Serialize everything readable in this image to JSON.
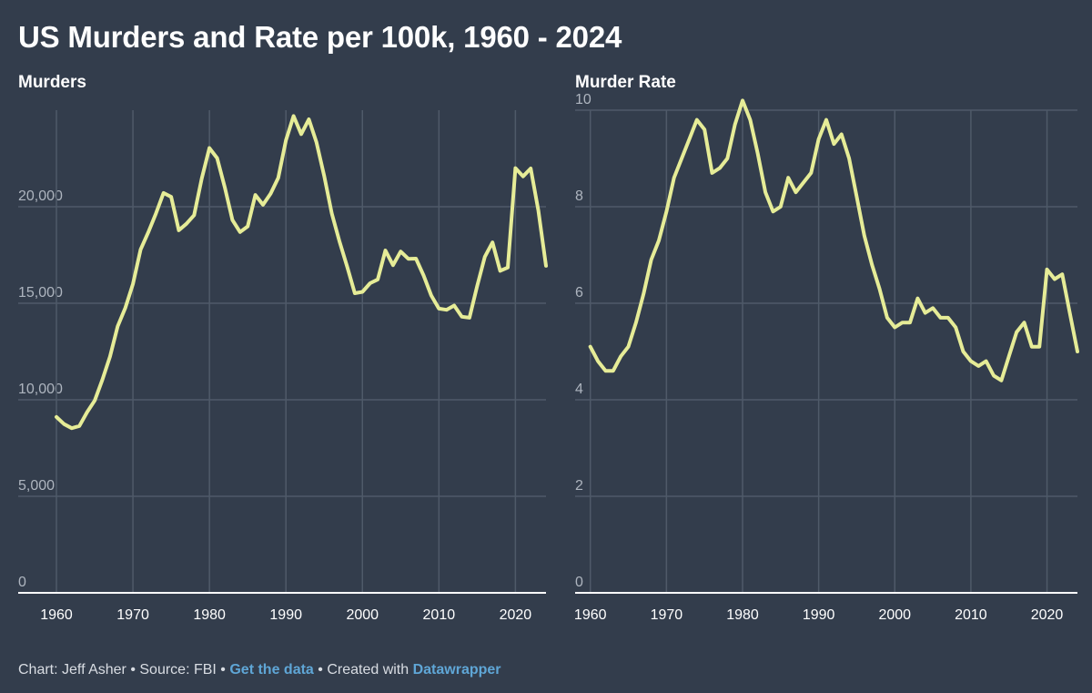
{
  "title": "US Murders and Rate per 100k, 1960 - 2024",
  "footer": {
    "chart_by": "Chart: Jeff Asher",
    "sep1": " • ",
    "source": "Source: FBI",
    "sep2": " • ",
    "get_data": "Get the data",
    "sep3": " • ",
    "created_with": "Created with ",
    "tool": "Datawrapper"
  },
  "colors": {
    "background": "#333d4c",
    "line": "#e6ec97",
    "grid": "#4f5a69",
    "axis": "#ffffff",
    "link": "#5fa6d6"
  },
  "chart_data": [
    {
      "type": "line",
      "title": "Murders",
      "xlabel": "",
      "ylabel": "",
      "xlim": [
        1955,
        2024
      ],
      "ylim": [
        0,
        25000
      ],
      "xticks": [
        1960,
        1970,
        1980,
        1990,
        2000,
        2010,
        2020
      ],
      "xtick_labels": [
        "1960",
        "1970",
        "1980",
        "1990",
        "2000",
        "2010",
        "2020"
      ],
      "yticks": [
        0,
        5000,
        10000,
        15000,
        20000
      ],
      "ytick_labels": [
        "0",
        "5,000",
        "10,000",
        "15,000",
        "20,000"
      ],
      "grid": true,
      "x": [
        1960,
        1961,
        1962,
        1963,
        1964,
        1965,
        1966,
        1967,
        1968,
        1969,
        1970,
        1971,
        1972,
        1973,
        1974,
        1975,
        1976,
        1977,
        1978,
        1979,
        1980,
        1981,
        1982,
        1983,
        1984,
        1985,
        1986,
        1987,
        1988,
        1989,
        1990,
        1991,
        1992,
        1993,
        1994,
        1995,
        1996,
        1997,
        1998,
        1999,
        2000,
        2001,
        2002,
        2003,
        2004,
        2005,
        2006,
        2007,
        2008,
        2009,
        2010,
        2011,
        2012,
        2013,
        2014,
        2015,
        2016,
        2017,
        2018,
        2019,
        2020,
        2021,
        2022,
        2023,
        2024
      ],
      "series": [
        {
          "values": [
            9110,
            8740,
            8530,
            8640,
            9360,
            9960,
            11040,
            12240,
            13800,
            14760,
            16000,
            17780,
            18670,
            19640,
            20710,
            20510,
            18780,
            19120,
            19560,
            21460,
            23040,
            22520,
            21010,
            19310,
            18690,
            18980,
            20610,
            20100,
            20680,
            21500,
            23440,
            24700,
            23760,
            24530,
            23330,
            21610,
            19650,
            18210,
            16910,
            15520,
            15590,
            16040,
            16230,
            17730,
            16970,
            17680,
            17300,
            17310,
            16440,
            15400,
            14720,
            14660,
            14880,
            14300,
            14250,
            15880,
            17410,
            18150,
            16680,
            16850,
            22000,
            21570,
            21980,
            19800,
            16940
          ]
        }
      ]
    },
    {
      "type": "line",
      "title": "Murder Rate",
      "xlabel": "",
      "ylabel": "",
      "xlim": [
        1958,
        2024
      ],
      "ylim": [
        0,
        10
      ],
      "xticks": [
        1960,
        1970,
        1980,
        1990,
        2000,
        2010,
        2020
      ],
      "xtick_labels": [
        "1960",
        "1970",
        "1980",
        "1990",
        "2000",
        "2010",
        "2020"
      ],
      "yticks": [
        0,
        2,
        4,
        6,
        8,
        10
      ],
      "ytick_labels": [
        "0",
        "2",
        "4",
        "6",
        "8",
        "10"
      ],
      "grid": true,
      "x": [
        1960,
        1961,
        1962,
        1963,
        1964,
        1965,
        1966,
        1967,
        1968,
        1969,
        1970,
        1971,
        1972,
        1973,
        1974,
        1975,
        1976,
        1977,
        1978,
        1979,
        1980,
        1981,
        1982,
        1983,
        1984,
        1985,
        1986,
        1987,
        1988,
        1989,
        1990,
        1991,
        1992,
        1993,
        1994,
        1995,
        1996,
        1997,
        1998,
        1999,
        2000,
        2001,
        2002,
        2003,
        2004,
        2005,
        2006,
        2007,
        2008,
        2009,
        2010,
        2011,
        2012,
        2013,
        2014,
        2015,
        2016,
        2017,
        2018,
        2019,
        2020,
        2021,
        2022,
        2023,
        2024
      ],
      "series": [
        {
          "values": [
            5.1,
            4.8,
            4.6,
            4.6,
            4.9,
            5.1,
            5.6,
            6.2,
            6.9,
            7.3,
            7.9,
            8.6,
            9.0,
            9.4,
            9.8,
            9.6,
            8.7,
            8.8,
            9.0,
            9.7,
            10.2,
            9.8,
            9.1,
            8.3,
            7.9,
            8.0,
            8.6,
            8.3,
            8.5,
            8.7,
            9.4,
            9.8,
            9.3,
            9.5,
            9.0,
            8.2,
            7.4,
            6.8,
            6.3,
            5.7,
            5.5,
            5.6,
            5.6,
            6.1,
            5.8,
            5.9,
            5.7,
            5.7,
            5.5,
            5.0,
            4.8,
            4.7,
            4.8,
            4.5,
            4.4,
            4.9,
            5.4,
            5.6,
            5.1,
            5.1,
            6.7,
            6.5,
            6.6,
            5.8,
            5.0
          ]
        }
      ]
    }
  ]
}
